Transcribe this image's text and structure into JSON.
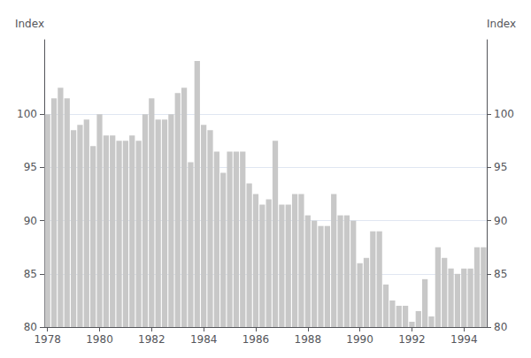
{
  "chart_data": {
    "type": "bar",
    "ylabel": "Index",
    "y2label": "Index",
    "categories": [
      "1978",
      null,
      null,
      null,
      null,
      null,
      null,
      null,
      "1980",
      null,
      null,
      null,
      null,
      null,
      null,
      null,
      "1982",
      null,
      null,
      null,
      null,
      null,
      null,
      null,
      "1984",
      null,
      null,
      null,
      null,
      null,
      null,
      null,
      "1986",
      null,
      null,
      null,
      null,
      null,
      null,
      null,
      "1988",
      null,
      null,
      null,
      null,
      null,
      null,
      null,
      "1990",
      null,
      null,
      null,
      null,
      null,
      null,
      null,
      "1992",
      null,
      null,
      null,
      null,
      null,
      null,
      null,
      "1994",
      null,
      null,
      null
    ],
    "values": [
      100.0,
      101.5,
      102.5,
      101.5,
      98.5,
      99.0,
      99.5,
      97.0,
      100.0,
      98.0,
      98.0,
      97.5,
      97.5,
      98.0,
      97.5,
      100.0,
      101.5,
      99.5,
      99.5,
      100.0,
      102.0,
      102.5,
      95.5,
      105.0,
      99.0,
      98.5,
      96.5,
      94.5,
      96.5,
      96.5,
      96.5,
      93.5,
      92.5,
      91.5,
      92.0,
      97.5,
      91.5,
      91.5,
      92.5,
      92.5,
      90.5,
      90.0,
      89.5,
      89.5,
      92.5,
      90.5,
      90.5,
      90.0,
      86.0,
      86.5,
      89.0,
      89.0,
      84.0,
      82.5,
      82.0,
      82.0,
      80.5,
      81.5,
      84.5,
      81.0,
      87.5,
      86.5,
      85.5,
      85.0,
      85.5,
      85.5,
      87.5,
      87.5
    ],
    "color": "#c8c8c8",
    "ylim": [
      80,
      107
    ],
    "yticks": [
      80,
      85,
      90,
      95,
      100
    ],
    "y2lim": [
      80,
      107
    ],
    "y2ticks": [
      80,
      85,
      90,
      95,
      100
    ],
    "grid": true
  }
}
